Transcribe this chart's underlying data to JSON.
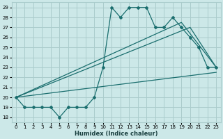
{
  "xlabel": "Humidex (Indice chaleur)",
  "xlim": [
    -0.5,
    23.5
  ],
  "ylim": [
    17.5,
    29.5
  ],
  "xticks": [
    0,
    1,
    2,
    3,
    4,
    5,
    6,
    7,
    8,
    9,
    10,
    11,
    12,
    13,
    14,
    15,
    16,
    17,
    18,
    19,
    20,
    21,
    22,
    23
  ],
  "yticks": [
    18,
    19,
    20,
    21,
    22,
    23,
    24,
    25,
    26,
    27,
    28,
    29
  ],
  "bg_color": "#cce8e8",
  "grid_color": "#aacccc",
  "line_color": "#1a6e6e",
  "main_x": [
    0,
    1,
    2,
    3,
    4,
    5,
    6,
    7,
    8,
    9,
    10,
    11,
    12,
    13,
    14,
    15,
    16,
    17,
    18,
    19,
    20,
    21,
    22,
    23
  ],
  "main_y": [
    20,
    19,
    19,
    19,
    19,
    18,
    19,
    19,
    19,
    20,
    23,
    29,
    28,
    29,
    29,
    29,
    27,
    27,
    28,
    27,
    26,
    25,
    23,
    23
  ],
  "trend1_x": [
    0,
    19,
    23
  ],
  "trend1_y": [
    20,
    27.5,
    23
  ],
  "trend2_x": [
    0,
    20,
    23
  ],
  "trend2_y": [
    20,
    27.0,
    23
  ],
  "trend3_x": [
    0,
    23
  ],
  "trend3_y": [
    20,
    22.5
  ]
}
